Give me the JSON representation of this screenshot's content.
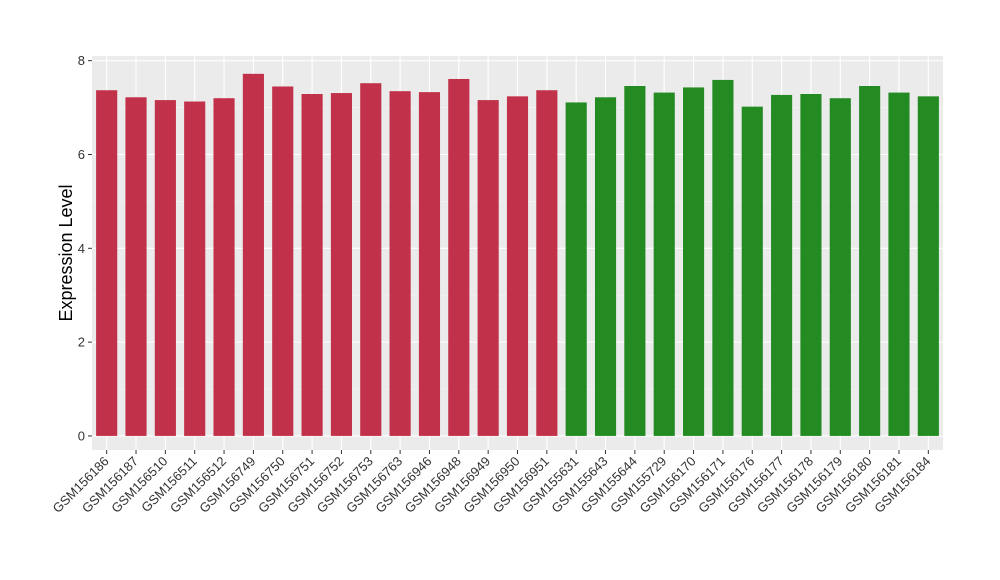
{
  "chart_data": {
    "type": "bar",
    "title": "",
    "xlabel": "",
    "ylabel": "Expression Level",
    "ylim": [
      -0.3,
      8.1
    ],
    "yticks": [
      0,
      2,
      4,
      6,
      8
    ],
    "grid": true,
    "legend": "none",
    "background": "#ebebeb",
    "categories": [
      "GSM156186",
      "GSM156187",
      "GSM156510",
      "GSM156511",
      "GSM156512",
      "GSM156749",
      "GSM156750",
      "GSM156751",
      "GSM156752",
      "GSM156753",
      "GSM156763",
      "GSM156946",
      "GSM156948",
      "GSM156949",
      "GSM156950",
      "GSM156951",
      "GSM155631",
      "GSM155643",
      "GSM155644",
      "GSM155729",
      "GSM156170",
      "GSM156171",
      "GSM156176",
      "GSM156177",
      "GSM156178",
      "GSM156179",
      "GSM156180",
      "GSM156181",
      "GSM156184"
    ],
    "values": [
      7.37,
      7.22,
      7.16,
      7.13,
      7.2,
      7.72,
      7.45,
      7.29,
      7.31,
      7.52,
      7.35,
      7.33,
      7.61,
      7.16,
      7.24,
      7.37,
      7.11,
      7.22,
      7.46,
      7.32,
      7.43,
      7.59,
      7.02,
      7.27,
      7.29,
      7.2,
      7.46,
      7.32,
      7.24
    ],
    "colors": [
      "#c2314a",
      "#c2314a",
      "#c2314a",
      "#c2314a",
      "#c2314a",
      "#c2314a",
      "#c2314a",
      "#c2314a",
      "#c2314a",
      "#c2314a",
      "#c2314a",
      "#c2314a",
      "#c2314a",
      "#c2314a",
      "#c2314a",
      "#c2314a",
      "#238b22",
      "#238b22",
      "#238b22",
      "#238b22",
      "#238b22",
      "#238b22",
      "#238b22",
      "#238b22",
      "#238b22",
      "#238b22",
      "#238b22",
      "#238b22",
      "#238b22"
    ]
  }
}
